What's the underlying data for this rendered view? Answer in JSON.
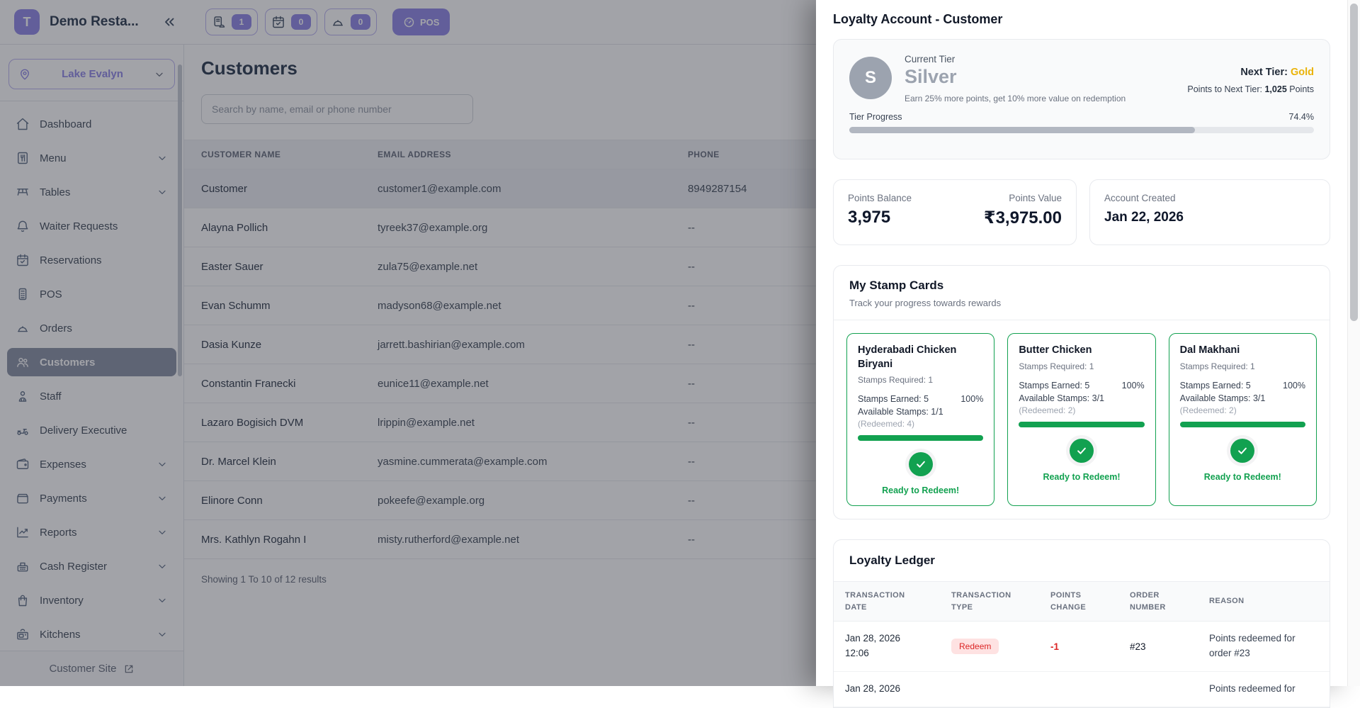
{
  "colors": {
    "accent": "#948de8",
    "green": "#12a150",
    "gold": "#eab308",
    "red": "#dc2626",
    "silver": "#9ca3af"
  },
  "header": {
    "app_initial": "T",
    "app_title": "Demo Resta...",
    "badges": [
      {
        "icon": "order-doc",
        "count": "1"
      },
      {
        "icon": "calendar-check",
        "count": "0"
      },
      {
        "icon": "cloche",
        "count": "0"
      }
    ],
    "pos_label": "POS"
  },
  "sidebar": {
    "location": "Lake Evalyn",
    "items": [
      {
        "label": "Dashboard",
        "icon": "home",
        "expandable": false,
        "active": false
      },
      {
        "label": "Menu",
        "icon": "menu-book",
        "expandable": true,
        "active": false
      },
      {
        "label": "Tables",
        "icon": "tables",
        "expandable": true,
        "active": false
      },
      {
        "label": "Waiter Requests",
        "icon": "bell",
        "expandable": false,
        "active": false
      },
      {
        "label": "Reservations",
        "icon": "calendar-check",
        "expandable": false,
        "active": false
      },
      {
        "label": "POS",
        "icon": "pos-terminal",
        "expandable": false,
        "active": false
      },
      {
        "label": "Orders",
        "icon": "cloche",
        "expandable": false,
        "active": false
      },
      {
        "label": "Customers",
        "icon": "users",
        "expandable": false,
        "active": true
      },
      {
        "label": "Staff",
        "icon": "staff",
        "expandable": false,
        "active": false
      },
      {
        "label": "Delivery Executive",
        "icon": "scooter",
        "expandable": false,
        "active": false
      },
      {
        "label": "Expenses",
        "icon": "wallet",
        "expandable": true,
        "active": false
      },
      {
        "label": "Payments",
        "icon": "payments",
        "expandable": true,
        "active": false
      },
      {
        "label": "Reports",
        "icon": "chart",
        "expandable": true,
        "active": false
      },
      {
        "label": "Cash Register",
        "icon": "cash-register",
        "expandable": true,
        "active": false
      },
      {
        "label": "Inventory",
        "icon": "bag",
        "expandable": true,
        "active": false
      },
      {
        "label": "Kitchens",
        "icon": "kitchen",
        "expandable": true,
        "active": false
      }
    ],
    "footer_label": "Customer Site"
  },
  "customers": {
    "title": "Customers",
    "search_placeholder": "Search by name, email or phone number",
    "columns": [
      "CUSTOMER NAME",
      "EMAIL ADDRESS",
      "PHONE"
    ],
    "rows": [
      {
        "name": "Customer",
        "email": "customer1@example.com",
        "phone": "8949287154",
        "selected": true
      },
      {
        "name": "Alayna Pollich",
        "email": "tyreek37@example.org",
        "phone": "--",
        "selected": false
      },
      {
        "name": "Easter Sauer",
        "email": "zula75@example.net",
        "phone": "--",
        "selected": false
      },
      {
        "name": "Evan Schumm",
        "email": "madyson68@example.net",
        "phone": "--",
        "selected": false
      },
      {
        "name": "Dasia Kunze",
        "email": "jarrett.bashirian@example.com",
        "phone": "--",
        "selected": false
      },
      {
        "name": "Constantin Franecki",
        "email": "eunice11@example.net",
        "phone": "--",
        "selected": false
      },
      {
        "name": "Lazaro Bogisich DVM",
        "email": "lrippin@example.net",
        "phone": "--",
        "selected": false
      },
      {
        "name": "Dr. Marcel Klein",
        "email": "yasmine.cummerata@example.com",
        "phone": "--",
        "selected": false
      },
      {
        "name": "Elinore Conn",
        "email": "pokeefe@example.org",
        "phone": "--",
        "selected": false
      },
      {
        "name": "Mrs. Kathlyn Rogahn I",
        "email": "misty.rutherford@example.net",
        "phone": "--",
        "selected": false
      }
    ],
    "footer": "Showing 1 To 10 of 12 results"
  },
  "loyalty": {
    "title": "Loyalty Account - Customer",
    "tier": {
      "avatar_letter": "S",
      "label": "Current Tier",
      "name": "Silver",
      "description": "Earn 25% more points, get 10% more value on redemption",
      "next_tier_label": "Next Tier:",
      "next_tier": "Gold",
      "points_to_next_label": "Points to Next Tier:",
      "points_to_next_value": "1,025",
      "points_to_next_suffix": "Points",
      "progress_label": "Tier Progress",
      "progress_percent": "74.4%",
      "progress_value": 74.4
    },
    "points": {
      "balance_label": "Points Balance",
      "balance": "3,975",
      "value_label": "Points Value",
      "value": "₹3,975.00",
      "created_label": "Account Created",
      "created": "Jan 22, 2026"
    },
    "stamps": {
      "title": "My Stamp Cards",
      "subtitle": "Track your progress towards rewards",
      "cards": [
        {
          "title": "Hyderabadi Chicken Biryani",
          "required": "Stamps Required: 1",
          "earned": "Stamps Earned: 5",
          "percent": "100%",
          "available": "Available Stamps: 1/1",
          "redeemed": "(Redeemed: 4)",
          "progress_value": 100,
          "status": "Ready to Redeem!"
        },
        {
          "title": "Butter Chicken",
          "required": "Stamps Required: 1",
          "earned": "Stamps Earned: 5",
          "percent": "100%",
          "available": "Available Stamps: 3/1",
          "redeemed": "(Redeemed: 2)",
          "progress_value": 100,
          "status": "Ready to Redeem!"
        },
        {
          "title": "Dal Makhani",
          "required": "Stamps Required: 1",
          "earned": "Stamps Earned: 5",
          "percent": "100%",
          "available": "Available Stamps: 3/1",
          "redeemed": "(Redeemed: 2)",
          "progress_value": 100,
          "status": "Ready to Redeem!"
        }
      ]
    },
    "ledger": {
      "title": "Loyalty Ledger",
      "columns": [
        "TRANSACTION DATE",
        "TRANSACTION TYPE",
        "POINTS CHANGE",
        "ORDER NUMBER",
        "REASON"
      ],
      "rows": [
        {
          "date_line1": "Jan 28, 2026",
          "date_line2": "12:06",
          "type": "Redeem",
          "points": "-1",
          "order": "#23",
          "reason": "Points redeemed for order #23"
        },
        {
          "date_line1": "Jan 28, 2026",
          "date_line2": "",
          "type": "",
          "points": "",
          "order": "",
          "reason": "Points redeemed for"
        }
      ]
    }
  }
}
